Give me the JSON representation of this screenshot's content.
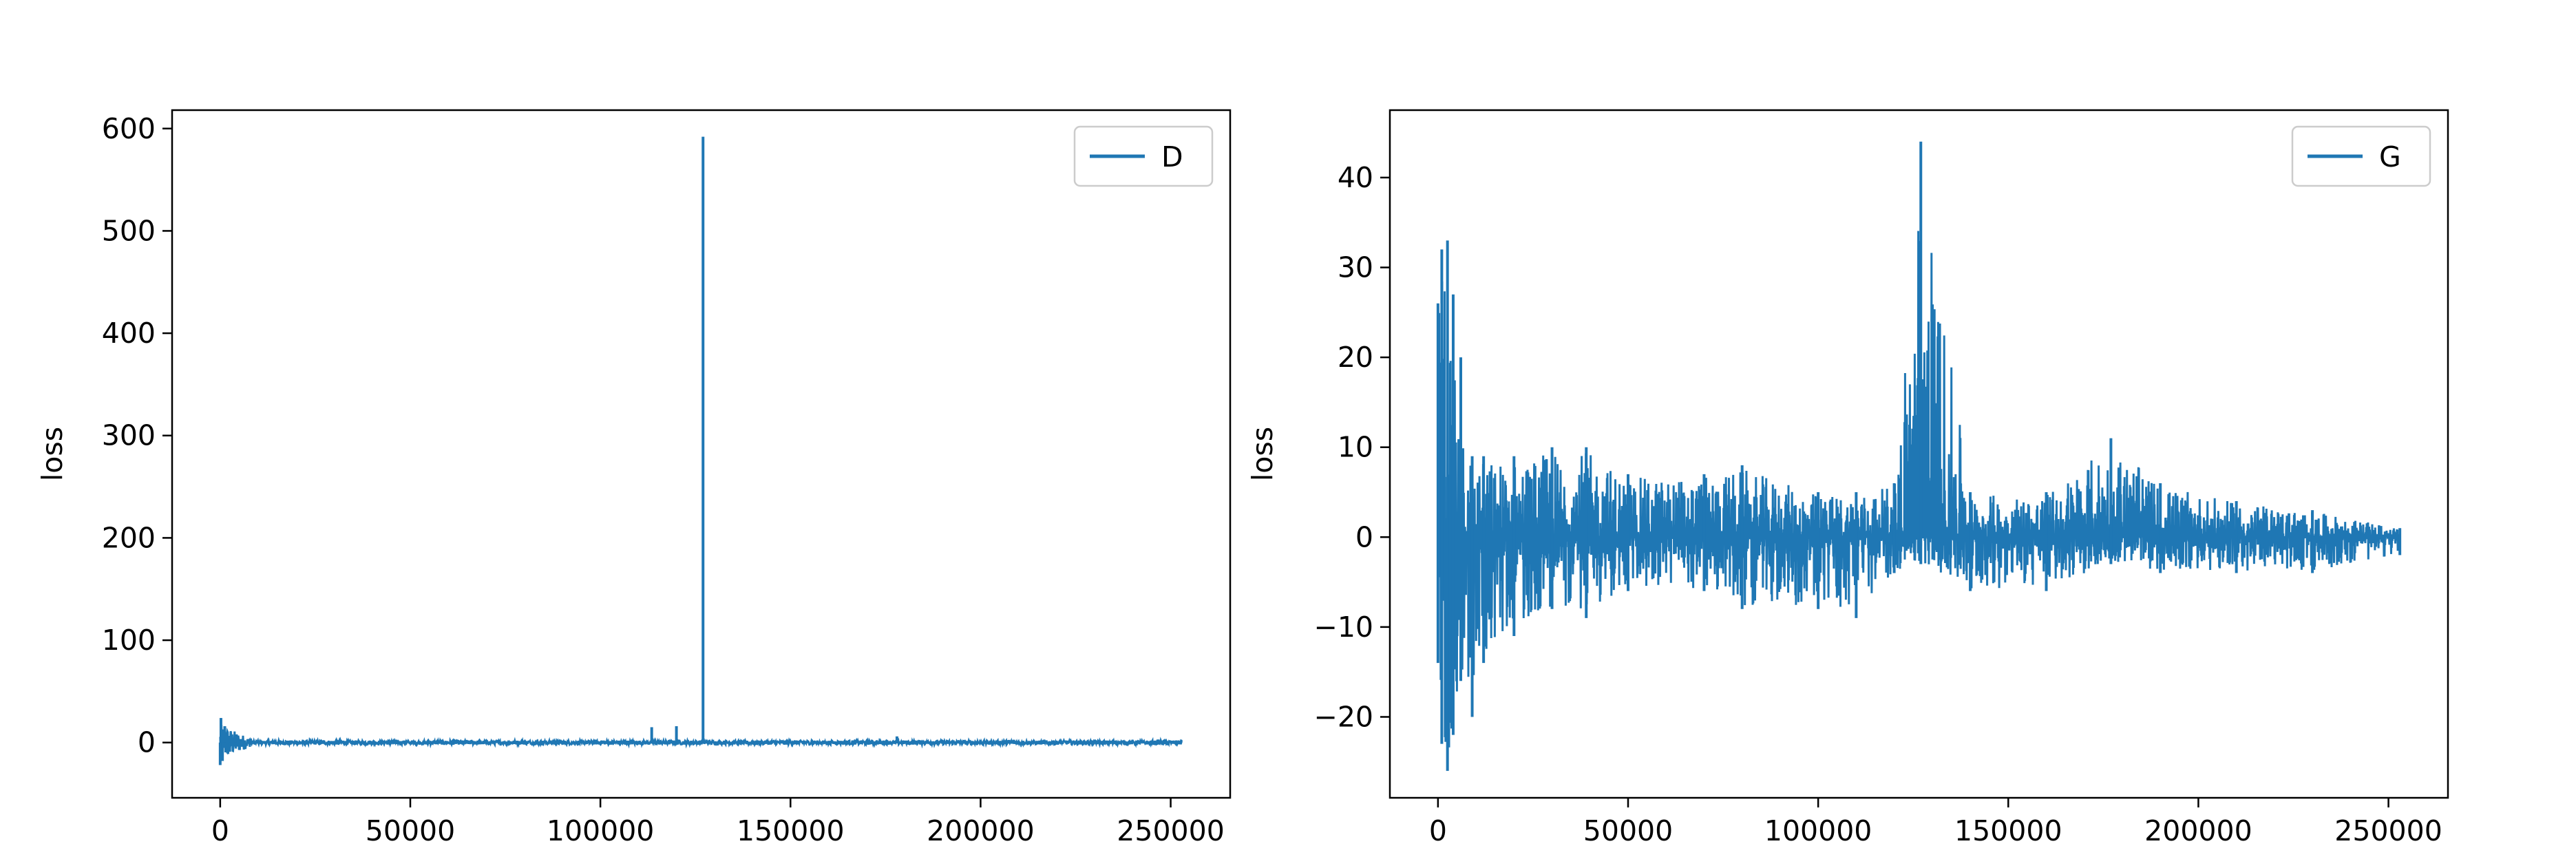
{
  "colors": {
    "series": "#1f77b4",
    "axes": "#000000",
    "legend_border": "#cccccc"
  },
  "chart_data": [
    {
      "type": "line",
      "title": "",
      "xlabel": "",
      "ylabel": "loss",
      "xlim": [
        -12650,
        265650
      ],
      "ylim": [
        -54,
        618
      ],
      "xticks": [
        0,
        50000,
        100000,
        150000,
        200000,
        250000
      ],
      "yticks": [
        0,
        100,
        200,
        300,
        400,
        500,
        600
      ],
      "grid": false,
      "legend_placement": "top-right",
      "series": [
        {
          "name": "D",
          "baseline": 0,
          "band_halfwidth": 2,
          "x_range": [
            0,
            253000
          ],
          "points": [
            [
              0,
              -22
            ],
            [
              200,
              24
            ],
            [
              600,
              -18
            ],
            [
              1200,
              16
            ],
            [
              2500,
              -9
            ],
            [
              4000,
              5
            ],
            [
              6000,
              -4
            ],
            [
              8000,
              4
            ],
            [
              20000,
              2
            ],
            [
              113500,
              15
            ],
            [
              120000,
              16
            ],
            [
              127000,
              592
            ],
            [
              178000,
              6
            ],
            [
              253000,
              0
            ]
          ]
        }
      ]
    },
    {
      "type": "line",
      "title": "",
      "xlabel": "",
      "ylabel": "loss",
      "xlim": [
        -12650,
        265650
      ],
      "ylim": [
        -29,
        47.5
      ],
      "xticks": [
        0,
        50000,
        100000,
        150000,
        200000,
        250000
      ],
      "yticks": [
        -20,
        -10,
        0,
        10,
        20,
        30,
        40
      ],
      "grid": false,
      "legend_placement": "top-right",
      "series": [
        {
          "name": "G",
          "envelope": [
            [
              0,
              26,
              -14
            ],
            [
              1000,
              32,
              -23
            ],
            [
              2500,
              33,
              -26
            ],
            [
              4000,
              27,
              -22
            ],
            [
              6000,
              20,
              -16
            ],
            [
              9000,
              9,
              -20
            ],
            [
              12000,
              9,
              -14
            ],
            [
              20000,
              9,
              -11
            ],
            [
              30000,
              10,
              -8
            ],
            [
              39000,
              10,
              -9
            ],
            [
              50000,
              7,
              -6
            ],
            [
              70000,
              7,
              -6
            ],
            [
              80000,
              8,
              -8
            ],
            [
              100000,
              5,
              -8
            ],
            [
              110000,
              5,
              -9
            ],
            [
              120000,
              6,
              -4
            ],
            [
              127000,
              44,
              -3
            ],
            [
              140000,
              5,
              -6
            ],
            [
              160000,
              5,
              -6
            ],
            [
              177000,
              11,
              -3
            ],
            [
              190000,
              6,
              -4
            ],
            [
              210000,
              4,
              -4
            ],
            [
              230000,
              3,
              -4
            ],
            [
              253000,
              1,
              -2
            ]
          ]
        }
      ]
    }
  ]
}
